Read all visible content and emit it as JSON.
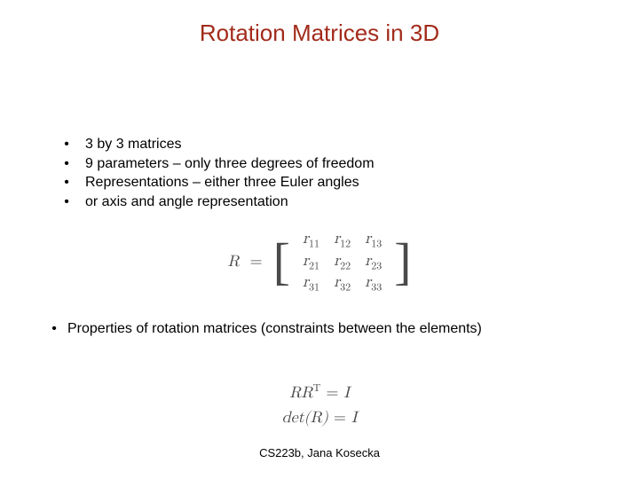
{
  "title": {
    "text": "Rotation Matrices in 3D",
    "color": "#a22b1a",
    "fontsize": 26
  },
  "bullets_top": [
    "3 by 3 matrices",
    "9 parameters – only three degrees of freedom",
    "Representations – either three Euler angles",
    "or axis and angle representation"
  ],
  "matrix": {
    "lhs": "R",
    "rows": [
      [
        "r",
        "11",
        "r",
        "12",
        "r",
        "13"
      ],
      [
        "r",
        "21",
        "r",
        "22",
        "r",
        "23"
      ],
      [
        "r",
        "31",
        "r",
        "32",
        "r",
        "33"
      ]
    ],
    "text_color": "#4a4a4a"
  },
  "bullets_bottom": [
    "Properties of rotation matrices (constraints between the elements)"
  ],
  "equations": {
    "eq1_lhs_base": "RR",
    "eq1_lhs_sup": "T",
    "eq1_rhs": "I",
    "eq2_lhs": "det(R)",
    "eq2_rhs": "I"
  },
  "footer": "CS223b, Jana Kosecka",
  "colors": {
    "background": "#ffffff",
    "body_text": "#000000"
  }
}
